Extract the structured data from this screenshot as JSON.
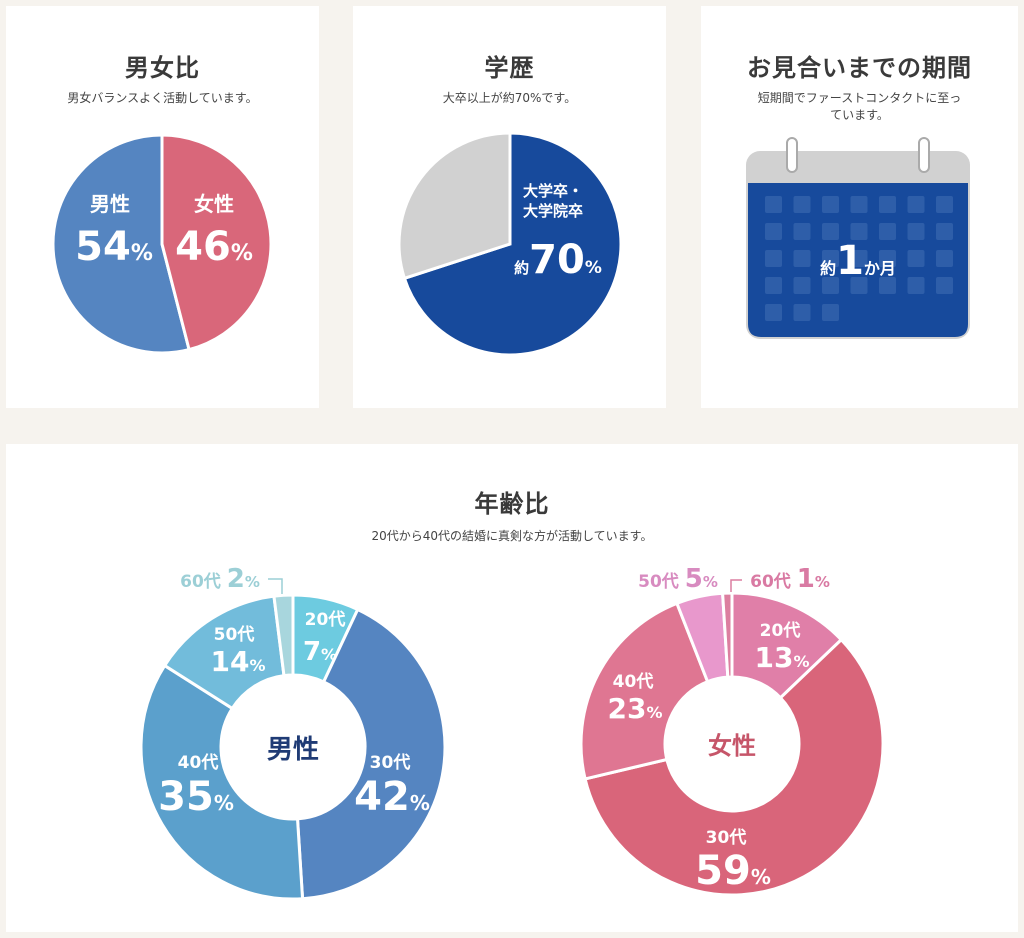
{
  "gender_card": {
    "title": "男女比",
    "subtitle": "男女バランスよく活動しています。"
  },
  "education_card": {
    "title": "学歴",
    "subtitle": "大卒以上が約70%です。",
    "label_line1": "大学卒・",
    "label_line2": "大学院卒",
    "prefix": "約",
    "value": "70",
    "unit": "%"
  },
  "period_card": {
    "title": "お見合いまでの期間",
    "subtitle_line1": "短期間でファーストコンタクトに至っ",
    "subtitle_line2": "ています。",
    "prefix": "約",
    "value": "1",
    "unit": "か月"
  },
  "age_card": {
    "title": "年齢比",
    "subtitle": "20代から40代の結婚に真剣な方が活動しています。"
  },
  "colors": {
    "male": "#5585c1",
    "female": "#d9677a",
    "education": "#174a9c",
    "education_other": "#d1d1d1",
    "calendar_body": "#174a9c",
    "male_text": "#1f3b75",
    "female_text": "#c65569"
  },
  "chart_data": [
    {
      "type": "pie",
      "title": "男女比",
      "slices": [
        {
          "label": "男性",
          "value": 54,
          "color": "#5585c1"
        },
        {
          "label": "女性",
          "value": 46,
          "color": "#d9677a"
        }
      ]
    },
    {
      "type": "pie",
      "title": "学歴",
      "slices": [
        {
          "label": "大学卒・大学院卒",
          "value": 70,
          "color": "#174a9c"
        },
        {
          "label": "",
          "value": 30,
          "color": "#d1d1d1"
        }
      ]
    },
    {
      "type": "pie",
      "title": "年齢比",
      "donut": true,
      "center_label": "男性",
      "slices": [
        {
          "label": "20代",
          "value": 7,
          "color": "#6dcbe0"
        },
        {
          "label": "30代",
          "value": 42,
          "color": "#5585c1"
        },
        {
          "label": "40代",
          "value": 35,
          "color": "#5ba0cc"
        },
        {
          "label": "50代",
          "value": 14,
          "color": "#72bcdb"
        },
        {
          "label": "60代",
          "value": 2,
          "color": "#a8d6dd"
        }
      ]
    },
    {
      "type": "pie",
      "title": "年齢比",
      "donut": true,
      "center_label": "女性",
      "slices": [
        {
          "label": "20代",
          "value": 13,
          "color": "#e07fa8"
        },
        {
          "label": "30代",
          "value": 59,
          "color": "#d9657a"
        },
        {
          "label": "40代",
          "value": 23,
          "color": "#df7692"
        },
        {
          "label": "50代",
          "value": 5,
          "color": "#e898cc"
        },
        {
          "label": "60代",
          "value": 1,
          "color": "#dc7fa0"
        }
      ]
    }
  ]
}
